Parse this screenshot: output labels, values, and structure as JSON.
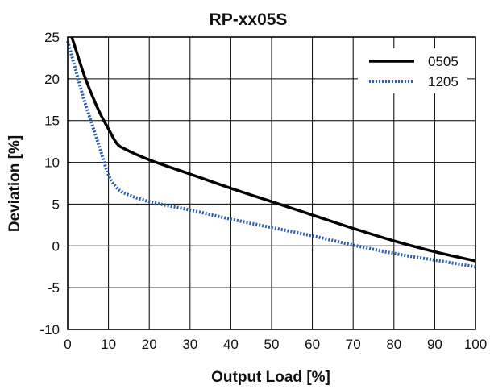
{
  "chart_data": {
    "type": "line",
    "title": "RP-xx05S",
    "xlabel": "Output Load [%]",
    "ylabel": "Deviation [%]",
    "xlim": [
      0,
      100
    ],
    "ylim": [
      -10,
      25
    ],
    "xticks": [
      0,
      10,
      20,
      30,
      40,
      50,
      60,
      70,
      80,
      90,
      100
    ],
    "yticks": [
      -10,
      -5,
      0,
      5,
      10,
      15,
      20,
      25
    ],
    "grid": true,
    "legend_position": "top-right",
    "series": [
      {
        "name": "0505",
        "color": "#000000",
        "style": "solid",
        "x": [
          1,
          2,
          4,
          6,
          8,
          10,
          12,
          14,
          20,
          30,
          40,
          50,
          60,
          70,
          80,
          90,
          100
        ],
        "y": [
          25,
          23.5,
          20.5,
          18,
          15.8,
          14,
          12.3,
          11.6,
          10.3,
          8.6,
          6.9,
          5.3,
          3.7,
          2.1,
          0.6,
          -0.7,
          -1.8
        ]
      },
      {
        "name": "1205",
        "color": "#2a5fae",
        "style": "dotted",
        "x": [
          0,
          2,
          4,
          6,
          8,
          10,
          12,
          14,
          20,
          30,
          40,
          50,
          60,
          70,
          80,
          90,
          100
        ],
        "y": [
          24.5,
          21,
          17.5,
          14.5,
          11.5,
          8.5,
          7,
          6.3,
          5.3,
          4.3,
          3.2,
          2.2,
          1.2,
          0.1,
          -0.9,
          -1.7,
          -2.5
        ]
      }
    ]
  }
}
